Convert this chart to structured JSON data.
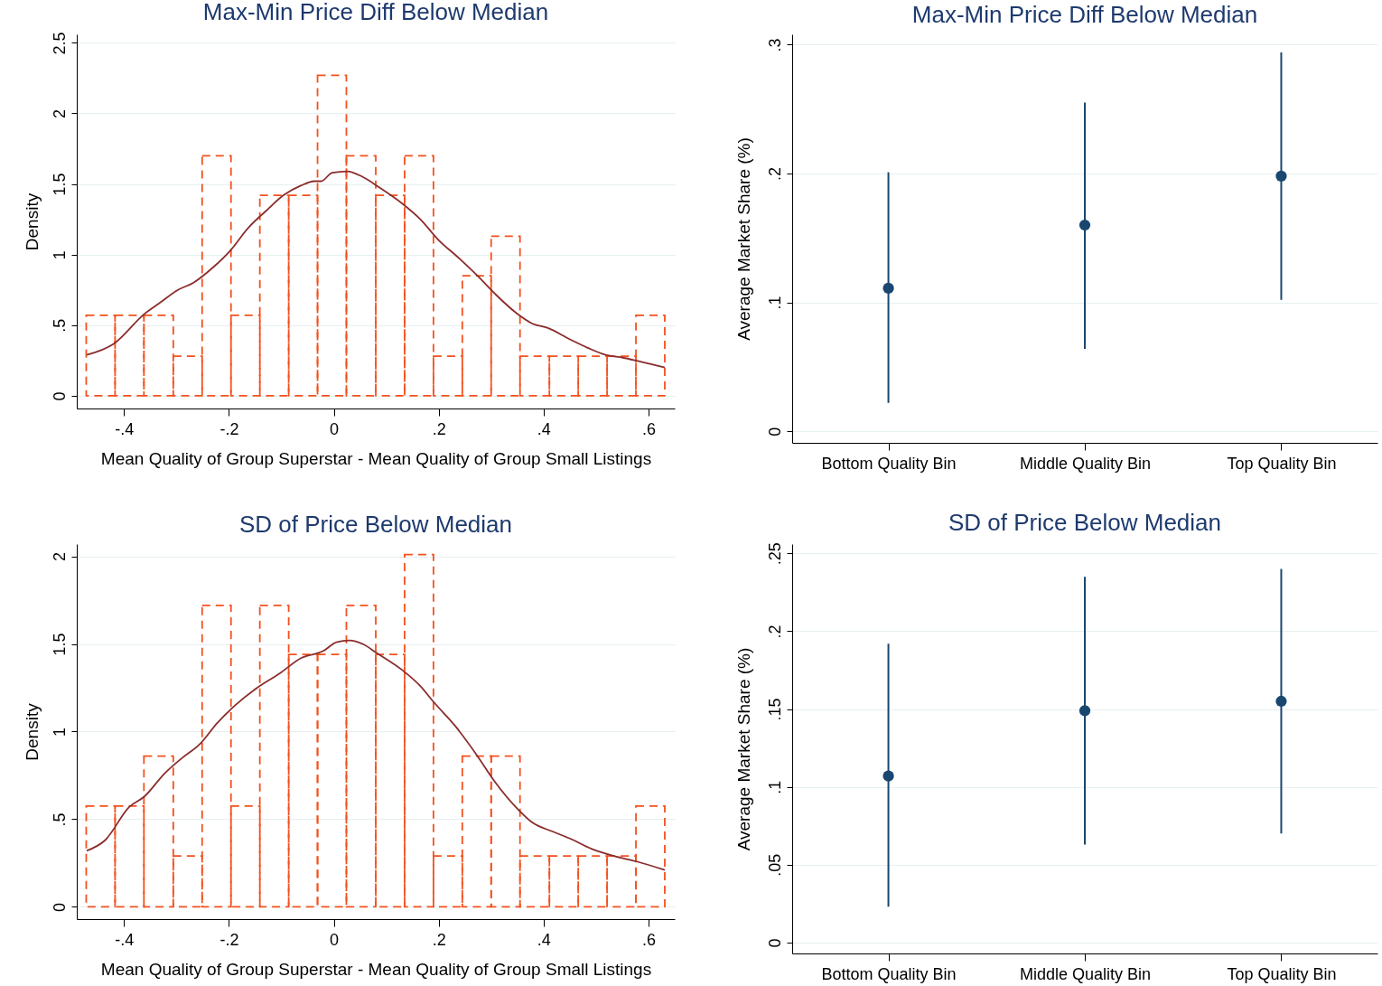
{
  "chart_data": [
    {
      "type": "histogram",
      "title": "Max-Min Price Diff Below Median",
      "xlabel": "Mean Quality of Group Superstar - Mean Quality of Group Small Listings",
      "ylabel": "Density",
      "bins": [
        -0.472,
        -0.417,
        -0.362,
        -0.306,
        -0.251,
        -0.196,
        -0.141,
        -0.086,
        -0.031,
        0.024,
        0.08,
        0.135,
        0.19,
        0.245,
        0.3,
        0.355,
        0.411,
        0.466,
        0.521,
        0.576,
        0.631
      ],
      "series": [
        {
          "type": "histogram",
          "color": "#f4511e",
          "line_style": "dashed",
          "values": [
            0.57,
            0.57,
            0.57,
            0.28,
            1.7,
            0.57,
            1.42,
            1.42,
            2.27,
            1.7,
            1.42,
            1.7,
            0.28,
            0.85,
            1.13,
            0.28,
            0.28,
            0.28,
            0.28,
            0.57
          ]
        },
        {
          "type": "line",
          "color": "#8b2c2c",
          "x": [
            -0.471,
            -0.419,
            -0.361,
            -0.331,
            -0.297,
            -0.268,
            -0.23,
            -0.197,
            -0.163,
            -0.129,
            -0.096,
            -0.062,
            -0.037,
            -0.024,
            -0.003,
            0.026,
            0.055,
            0.089,
            0.131,
            0.165,
            0.198,
            0.24,
            0.274,
            0.308,
            0.35,
            0.379,
            0.408,
            0.45,
            0.484,
            0.518,
            0.551,
            0.576,
            0.631
          ],
          "values": [
            0.29,
            0.37,
            0.58,
            0.66,
            0.75,
            0.8,
            0.91,
            1.03,
            1.19,
            1.31,
            1.42,
            1.49,
            1.52,
            1.52,
            1.58,
            1.59,
            1.55,
            1.47,
            1.36,
            1.25,
            1.11,
            0.97,
            0.85,
            0.72,
            0.58,
            0.51,
            0.48,
            0.4,
            0.34,
            0.29,
            0.27,
            0.25,
            0.2
          ]
        }
      ],
      "xlim": [
        -0.49,
        0.65
      ],
      "xticks": [
        {
          "value": -0.4,
          "label": "-.4"
        },
        {
          "value": -0.2,
          "label": "-.2"
        },
        0,
        {
          "value": 0.2,
          "label": ".2"
        },
        {
          "value": 0.4,
          "label": ".4"
        },
        {
          "value": 0.6,
          "label": ".6"
        }
      ],
      "ylim": [
        -0.09,
        2.56
      ],
      "yticks": [
        0,
        {
          "value": 0.5,
          "label": ".5"
        },
        1,
        1.5,
        2,
        2.5
      ],
      "grid": "y"
    },
    {
      "type": "scatter",
      "title": "Max-Min Price Diff Below Median",
      "ylabel": "Average Market Share (%)",
      "categories": [
        "Bottom Quality Bin",
        "Middle Quality Bin",
        "Top Quality Bin"
      ],
      "series": [
        {
          "color": "#1a476f",
          "values": [
            0.111,
            0.16,
            0.198
          ],
          "errors": [
            [
              0.022,
              0.201
            ],
            [
              0.064,
              0.255
            ],
            [
              0.102,
              0.294
            ]
          ]
        }
      ],
      "ylim": [
        -0.009,
        0.308
      ],
      "yticks": [
        0,
        {
          "value": 0.1,
          "label": ".1"
        },
        {
          "value": 0.2,
          "label": ".2"
        },
        {
          "value": 0.3,
          "label": ".3"
        }
      ],
      "grid": "y",
      "marker": "circle"
    },
    {
      "type": "histogram",
      "title": "SD of Price Below Median",
      "xlabel": "Mean Quality of Group Superstar - Mean Quality of Group Small Listings",
      "ylabel": "Density",
      "bins": [
        -0.472,
        -0.417,
        -0.362,
        -0.306,
        -0.251,
        -0.196,
        -0.141,
        -0.086,
        -0.031,
        0.024,
        0.08,
        0.135,
        0.19,
        0.245,
        0.3,
        0.355,
        0.411,
        0.466,
        0.521,
        0.576,
        0.631
      ],
      "series": [
        {
          "type": "histogram",
          "color": "#f4511e",
          "line_style": "dashed",
          "values": [
            0.575,
            0.575,
            0.86,
            0.29,
            1.72,
            0.575,
            1.72,
            1.44,
            1.44,
            1.72,
            1.44,
            2.01,
            0.29,
            0.86,
            0.86,
            0.29,
            0.29,
            0.29,
            0.29,
            0.575
          ]
        },
        {
          "type": "line",
          "color": "#8b2c2c",
          "x": [
            -0.471,
            -0.436,
            -0.39,
            -0.361,
            -0.323,
            -0.289,
            -0.255,
            -0.222,
            -0.188,
            -0.146,
            -0.104,
            -0.062,
            -0.02,
            0.005,
            0.03,
            0.055,
            0.081,
            0.131,
            0.165,
            0.19,
            0.232,
            0.274,
            0.308,
            0.35,
            0.379,
            0.417,
            0.45,
            0.492,
            0.534,
            0.576,
            0.631
          ],
          "values": [
            0.32,
            0.38,
            0.57,
            0.63,
            0.76,
            0.85,
            0.93,
            1.05,
            1.15,
            1.25,
            1.33,
            1.42,
            1.46,
            1.51,
            1.52,
            1.5,
            1.45,
            1.35,
            1.26,
            1.17,
            1.03,
            0.86,
            0.71,
            0.56,
            0.48,
            0.43,
            0.39,
            0.33,
            0.29,
            0.26,
            0.21
          ]
        }
      ],
      "xlim": [
        -0.49,
        0.65
      ],
      "xticks": [
        {
          "value": -0.4,
          "label": "-.4"
        },
        {
          "value": -0.2,
          "label": "-.2"
        },
        0,
        {
          "value": 0.2,
          "label": ".2"
        },
        {
          "value": 0.4,
          "label": ".4"
        },
        {
          "value": 0.6,
          "label": ".6"
        }
      ],
      "ylim": [
        -0.07,
        2.07
      ],
      "yticks": [
        0,
        {
          "value": 0.5,
          "label": ".5"
        },
        1,
        1.5,
        2
      ],
      "grid": "y"
    },
    {
      "type": "scatter",
      "title": "SD of Price Below Median",
      "ylabel": "Average Market Share (%)",
      "categories": [
        "Bottom Quality Bin",
        "Middle Quality Bin",
        "Top Quality Bin"
      ],
      "series": [
        {
          "color": "#1a476f",
          "values": [
            0.107,
            0.149,
            0.155
          ],
          "errors": [
            [
              0.023,
              0.192
            ],
            [
              0.063,
              0.235
            ],
            [
              0.07,
              0.24
            ]
          ]
        }
      ],
      "ylim": [
        -0.007,
        0.256
      ],
      "yticks": [
        0,
        {
          "value": 0.05,
          "label": ".05"
        },
        {
          "value": 0.1,
          "label": ".1"
        },
        {
          "value": 0.15,
          "label": ".15"
        },
        {
          "value": 0.2,
          "label": ".2"
        },
        {
          "value": 0.25,
          "label": ".25"
        }
      ],
      "grid": "y",
      "marker": "circle"
    }
  ]
}
